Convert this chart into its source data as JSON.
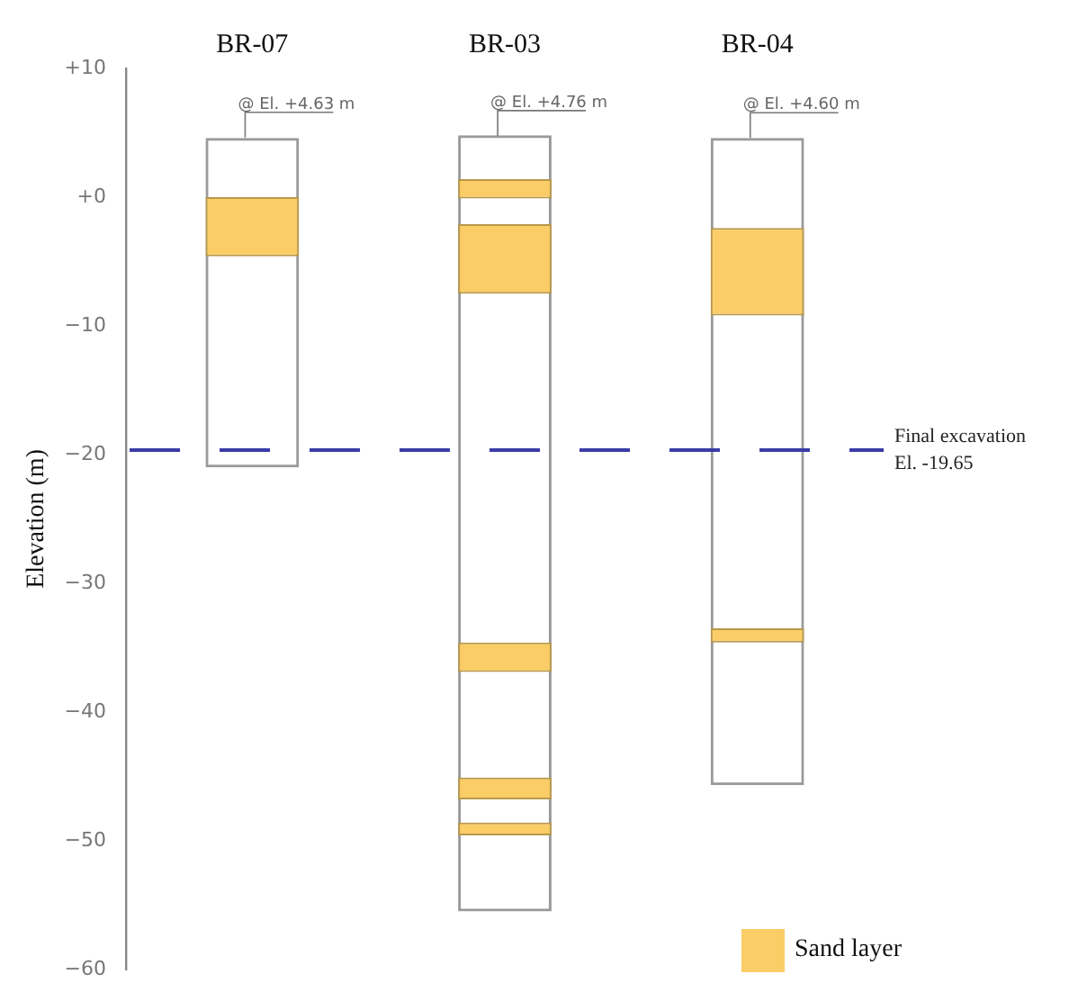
{
  "chart_data": {
    "type": "bar",
    "ylabel": "Elevation (m)",
    "categories": [
      "BR-07",
      "BR-03",
      "BR-04"
    ],
    "series": [
      {
        "color": "#9a9a9a",
        "base": [
          -21.0,
          -55.5,
          -45.7
        ],
        "values": [
          25.6,
          60.3,
          50.3
        ]
      },
      {
        "name": "Sand layer",
        "color": "#fbcd66",
        "base": [
          -4.6,
          -0.1,
          -9.2
        ],
        "values": [
          4.6,
          1.5,
          6.8
        ]
      },
      {
        "color": "#fbcd66",
        "base": [
          null,
          -7.5,
          -34.6
        ],
        "values": [
          null,
          5.4,
          1.1
        ]
      },
      {
        "color": "#fbcd66",
        "base": [
          null,
          -36.9,
          null
        ],
        "values": [
          null,
          2.3,
          null
        ]
      },
      {
        "color": "#fbcd66",
        "base": [
          null,
          -46.8,
          null
        ],
        "values": [
          null,
          1.7,
          null
        ]
      },
      {
        "color": "#fbcd66",
        "base": [
          null,
          -49.6,
          null
        ],
        "values": [
          null,
          1.0,
          null
        ]
      }
    ],
    "ylim": [
      -60,
      10
    ],
    "yticks": [
      {
        "value": 10,
        "label": "+10"
      },
      {
        "value": 0,
        "label": "+0"
      },
      {
        "value": -10,
        "label": "−10"
      },
      {
        "value": -20,
        "label": "−20"
      },
      {
        "value": -30,
        "label": "−30"
      },
      {
        "value": -40,
        "label": "−40"
      },
      {
        "value": -50,
        "label": "−50"
      },
      {
        "value": -60,
        "label": "−60"
      }
    ],
    "ref_lines": [
      {
        "axis": "y",
        "value": -19.65,
        "label": "Final excavation\nEl. -19.65",
        "color": "#3b3ba8",
        "line_style": "dashed"
      }
    ],
    "annotations": [
      {
        "text": "@ El. +4.63 m",
        "x": "BR-07",
        "y": 4.63
      },
      {
        "text": "@ El. +4.76 m",
        "x": "BR-03",
        "y": 4.76
      },
      {
        "text": "@ El. +4.60 m",
        "x": "BR-04",
        "y": 4.6
      }
    ],
    "grid": false,
    "legend": "bottom right"
  }
}
